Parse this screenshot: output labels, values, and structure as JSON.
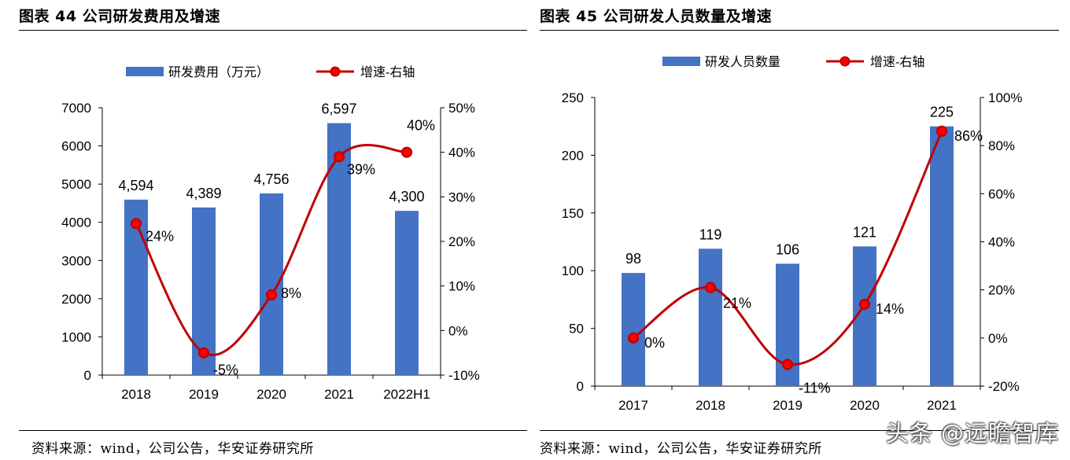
{
  "left_panel": {
    "title": "图表 44  公司研发费用及增速",
    "source": "资料来源：wind，公司公告，华安证券研究所"
  },
  "right_panel": {
    "title": "图表 45  公司研发人员数量及增速",
    "source": "资料来源：wind，公司公告，华安证券研究所"
  },
  "watermark": "头条 @远瞻智库",
  "colors": {
    "bar": "#4472C4",
    "line": "#C00000",
    "marker_fill": "#FF0000",
    "marker_stroke": "#C00000"
  },
  "chart_data": [
    {
      "type": "bar",
      "title": "公司研发费用及增速",
      "categories": [
        "2018",
        "2019",
        "2020",
        "2021",
        "2022H1"
      ],
      "series": [
        {
          "name": "研发费用（万元）",
          "kind": "bar",
          "axis": "left",
          "values": [
            4594,
            4389,
            4756,
            6597,
            4300
          ],
          "labels": [
            "4,594",
            "4,389",
            "4,756",
            "6,597",
            "4,300"
          ]
        },
        {
          "name": "增速-右轴",
          "kind": "line",
          "axis": "right",
          "values": [
            24,
            -5,
            8,
            39,
            40
          ],
          "labels": [
            "24%",
            "-5%",
            "8%",
            "39%",
            "40%"
          ]
        }
      ],
      "y_left": {
        "min": 0,
        "max": 7000,
        "step": 1000,
        "ticks": [
          "0",
          "1000",
          "2000",
          "3000",
          "4000",
          "5000",
          "6000",
          "7000"
        ]
      },
      "y_right": {
        "min": -10,
        "max": 50,
        "step": 10,
        "ticks": [
          "-10%",
          "0%",
          "10%",
          "20%",
          "30%",
          "40%",
          "50%"
        ]
      },
      "legend_position": "top"
    },
    {
      "type": "bar",
      "title": "公司研发人员数量及增速",
      "categories": [
        "2017",
        "2018",
        "2019",
        "2020",
        "2021"
      ],
      "series": [
        {
          "name": "研发人员数量",
          "kind": "bar",
          "axis": "left",
          "values": [
            98,
            119,
            106,
            121,
            225
          ],
          "labels": [
            "98",
            "119",
            "106",
            "121",
            "225"
          ]
        },
        {
          "name": "增速-右轴",
          "kind": "line",
          "axis": "right",
          "values": [
            0,
            21,
            -11,
            14,
            86
          ],
          "labels": [
            "0%",
            "21%",
            "-11%",
            "14%",
            "86%"
          ]
        }
      ],
      "y_left": {
        "min": 0,
        "max": 250,
        "step": 50,
        "ticks": [
          "0",
          "50",
          "100",
          "150",
          "200",
          "250"
        ]
      },
      "y_right": {
        "min": -20,
        "max": 100,
        "step": 20,
        "ticks": [
          "-20%",
          "0%",
          "20%",
          "40%",
          "60%",
          "80%",
          "100%"
        ]
      },
      "legend_position": "top"
    }
  ]
}
